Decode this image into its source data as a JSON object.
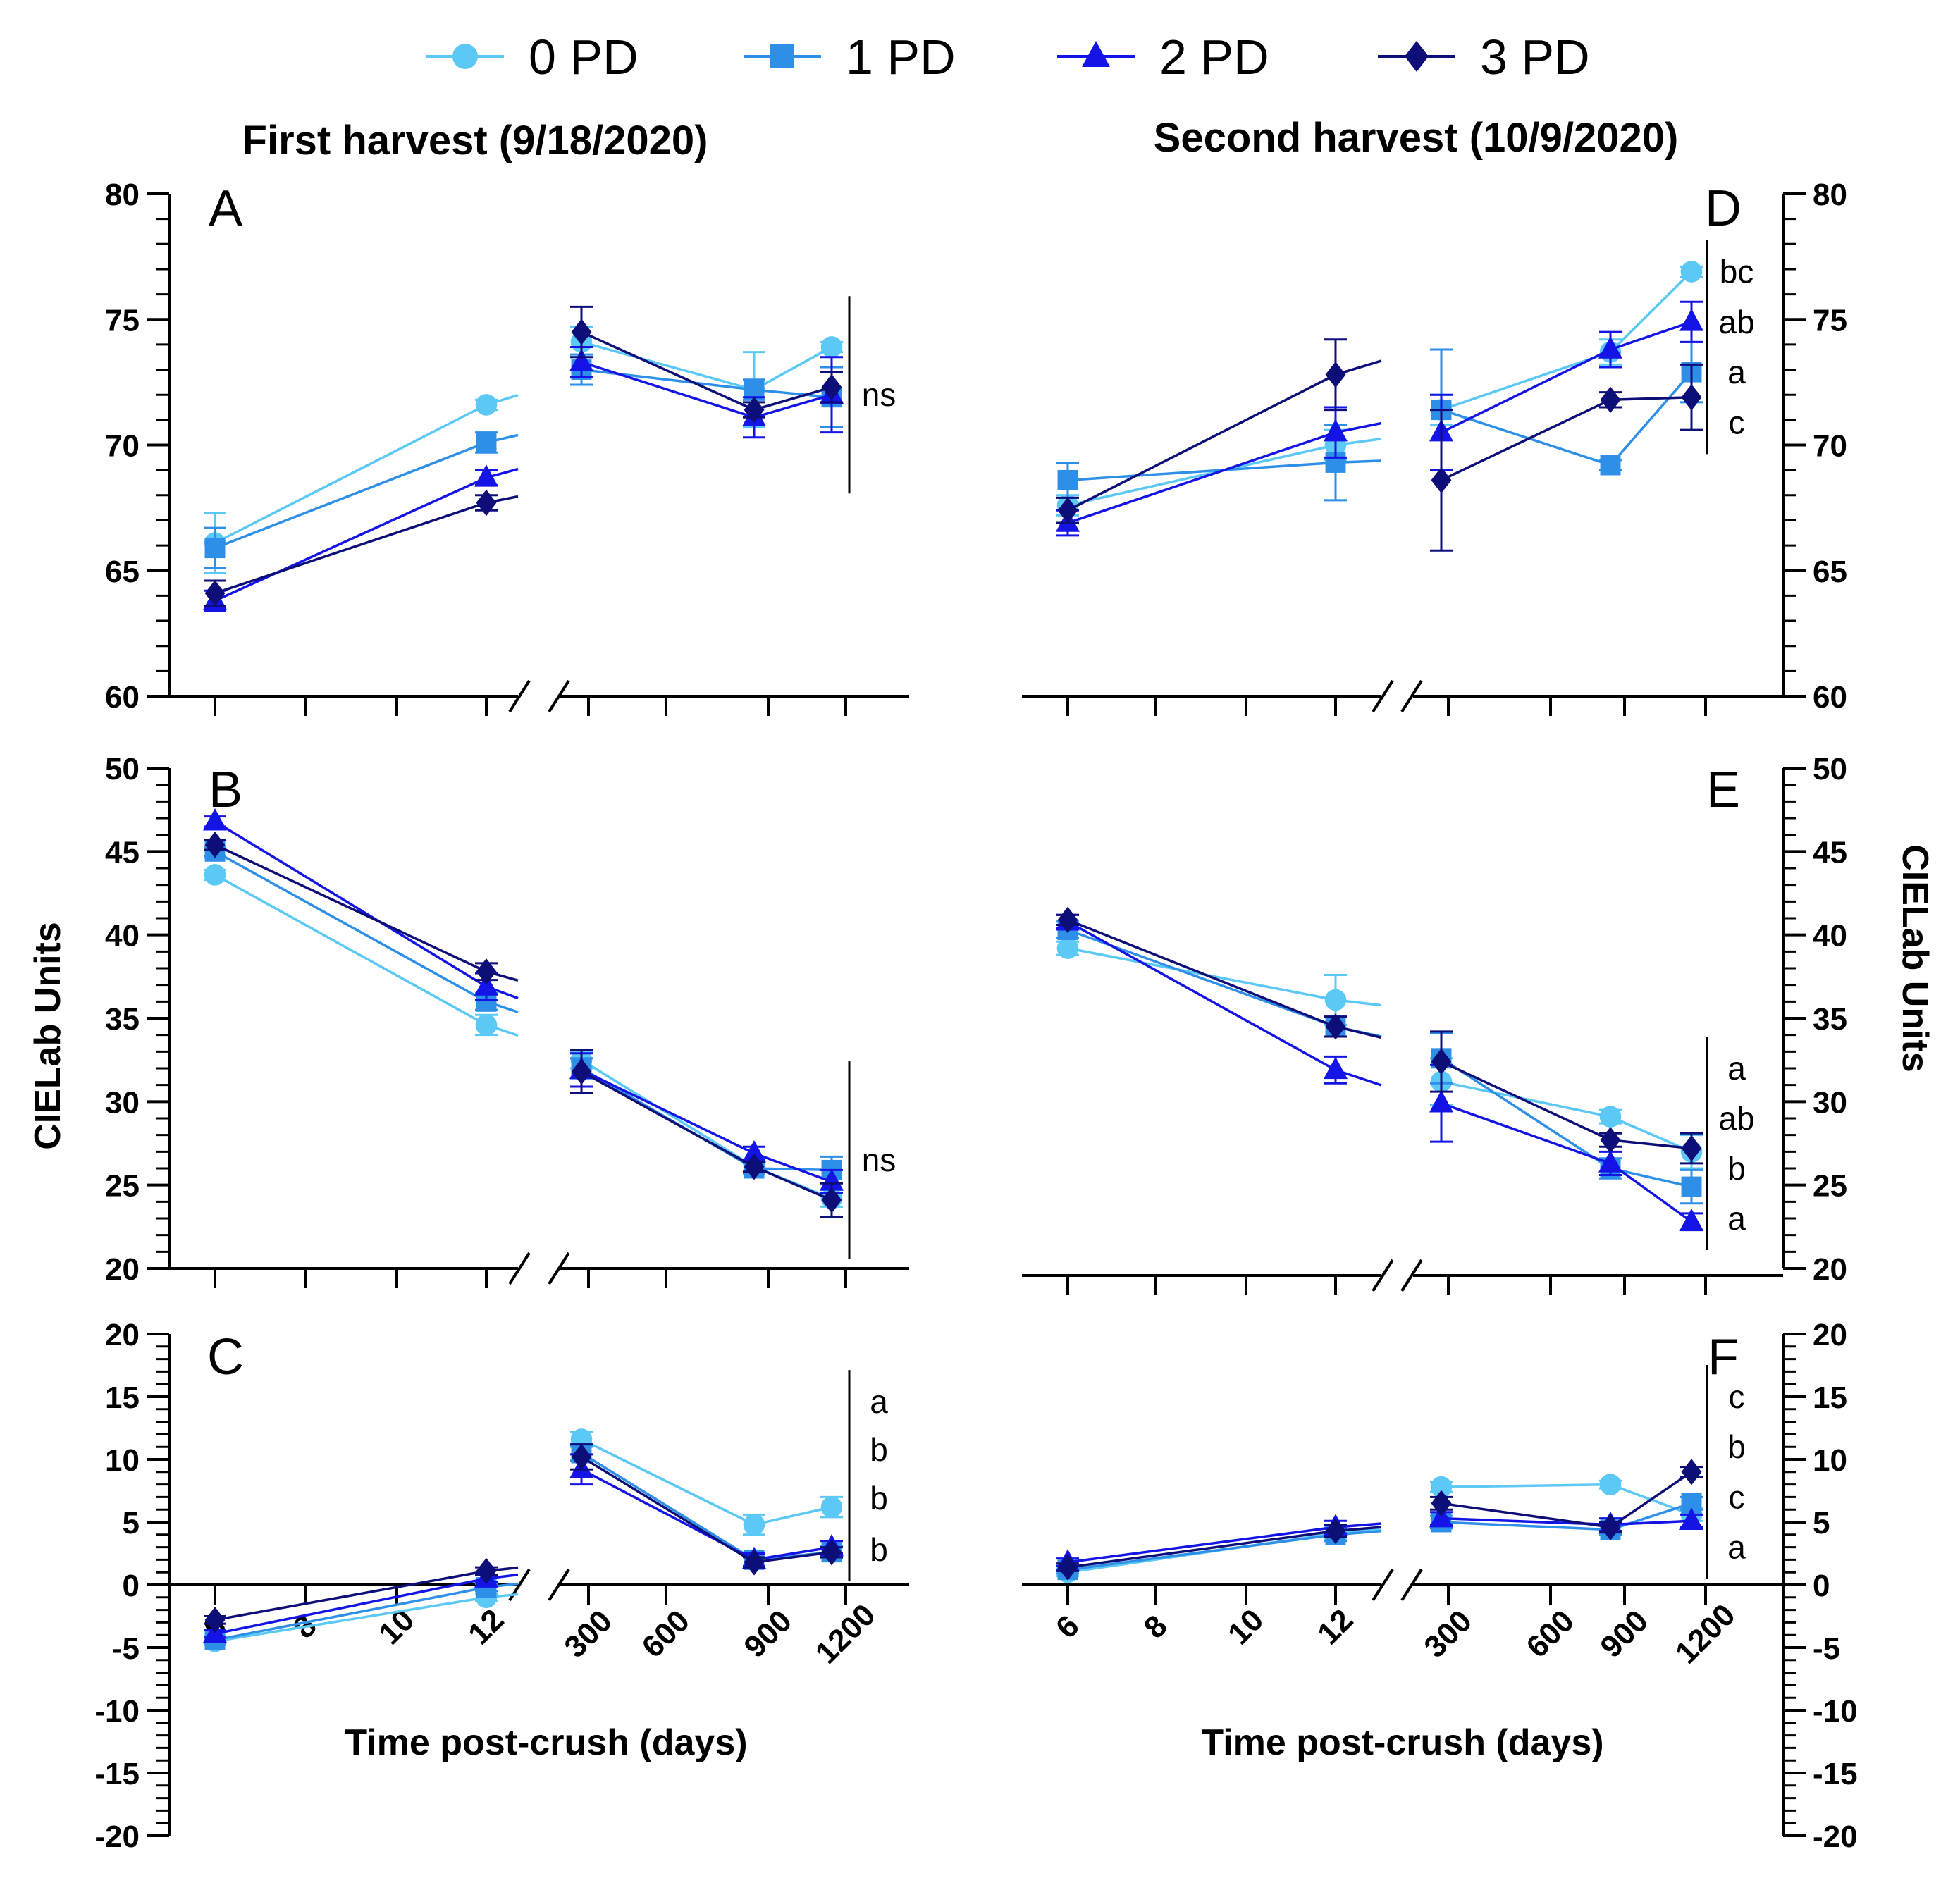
{
  "legend": [
    {
      "name": "0 PD",
      "color": "#5BC8F5",
      "marker": "circle"
    },
    {
      "name": "1 PD",
      "color": "#2E8FE8",
      "marker": "square"
    },
    {
      "name": "2 PD",
      "color": "#1414E6",
      "marker": "triangle"
    },
    {
      "name": "3 PD",
      "color": "#0E0E78",
      "marker": "diamond"
    }
  ],
  "titles": {
    "first": "First harvest  (9/18/2020)",
    "second": "Second harvest (10/9/2020)"
  },
  "axis_titles": {
    "y_left": "CIELab Units",
    "y_right": "CIELab Units",
    "x_left": "Time post-crush (days)",
    "x_right": "Time post-crush (days)"
  },
  "x_ticks": {
    "early": [
      6,
      8,
      10,
      12
    ],
    "late": [
      300,
      600,
      900,
      1200
    ]
  },
  "chart_data": [
    {
      "type": "line",
      "panel": "A",
      "harvest": "First harvest (9/18/2020)",
      "ylim": [
        60,
        80
      ],
      "y_ticks": [
        60,
        65,
        70,
        75,
        80
      ],
      "x": [
        6,
        12,
        150,
        800,
        1100
      ],
      "series": [
        {
          "name": "0 PD",
          "values": [
            66.1,
            71.6,
            74.1,
            72.2,
            73.9
          ],
          "err": [
            1.2,
            0.2,
            0.6,
            1.5,
            0.2
          ]
        },
        {
          "name": "1 PD",
          "values": [
            65.9,
            70.1,
            73.0,
            72.2,
            71.9
          ],
          "err": [
            0.8,
            0.4,
            0.6,
            0.4,
            1.2
          ]
        },
        {
          "name": "2 PD",
          "values": [
            63.8,
            68.7,
            73.3,
            71.1,
            72.0
          ],
          "err": [
            0.4,
            0.3,
            0.6,
            0.8,
            1.5
          ]
        },
        {
          "name": "3 PD",
          "values": [
            64.1,
            67.7,
            74.5,
            71.4,
            72.3
          ],
          "err": [
            0.5,
            0.3,
            1.0,
            0.3,
            0.6
          ]
        }
      ],
      "sig_labels": [
        "ns"
      ],
      "sig_y": [
        72.0
      ]
    },
    {
      "type": "line",
      "panel": "B",
      "harvest": "First harvest (9/18/2020)",
      "ylim": [
        20,
        50
      ],
      "y_ticks": [
        20,
        25,
        30,
        35,
        40,
        45,
        50
      ],
      "x": [
        6,
        12,
        150,
        800,
        1100
      ],
      "series": [
        {
          "name": "0 PD",
          "values": [
            43.6,
            34.6,
            32.5,
            26.1,
            24.2
          ],
          "err": [
            0.3,
            0.6,
            0.5,
            0.3,
            0.5
          ]
        },
        {
          "name": "1 PD",
          "values": [
            45.0,
            36.0,
            32.0,
            26.0,
            25.9
          ],
          "err": [
            0.3,
            0.5,
            0.6,
            0.3,
            0.8
          ]
        },
        {
          "name": "2 PD",
          "values": [
            46.8,
            36.9,
            31.9,
            26.9,
            25.2
          ],
          "err": [
            0.3,
            0.8,
            1.0,
            0.4,
            0.7
          ]
        },
        {
          "name": "3 PD",
          "values": [
            45.4,
            37.8,
            31.8,
            26.1,
            24.1
          ],
          "err": [
            0.3,
            0.5,
            1.3,
            0.3,
            1.0
          ]
        }
      ],
      "sig_labels": [
        "ns"
      ],
      "sig_y": [
        26.5
      ]
    },
    {
      "type": "line",
      "panel": "C",
      "harvest": "First harvest (9/18/2020)",
      "ylim": [
        -20,
        20
      ],
      "y_ticks": [
        -20,
        -15,
        -10,
        -5,
        0,
        5,
        10,
        15,
        20
      ],
      "x": [
        6,
        12,
        150,
        800,
        1100
      ],
      "series": [
        {
          "name": "0 PD",
          "values": [
            -4.5,
            -1.0,
            11.6,
            4.8,
            6.2
          ],
          "err": [
            0.3,
            0.3,
            0.6,
            0.8,
            0.8
          ]
        },
        {
          "name": "1 PD",
          "values": [
            -4.4,
            -0.2,
            10.5,
            2.0,
            2.6
          ],
          "err": [
            0.3,
            0.3,
            0.6,
            0.5,
            0.5
          ]
        },
        {
          "name": "2 PD",
          "values": [
            -3.9,
            0.5,
            9.2,
            2.0,
            3.0
          ],
          "err": [
            0.3,
            0.3,
            1.2,
            0.5,
            0.5
          ]
        },
        {
          "name": "3 PD",
          "values": [
            -2.8,
            1.1,
            10.2,
            1.8,
            2.6
          ],
          "err": [
            0.3,
            0.3,
            1.0,
            0.4,
            0.4
          ]
        }
      ],
      "sig_labels": [
        "a",
        "b",
        "b",
        "b"
      ],
      "sig_y": [
        14.6,
        10.8,
        6.9,
        2.8
      ]
    },
    {
      "type": "line",
      "panel": "D",
      "harvest": "Second harvest (10/9/2020)",
      "ylim": [
        60,
        80
      ],
      "y_ticks": [
        60,
        65,
        70,
        75,
        80
      ],
      "x": [
        6,
        12,
        150,
        800,
        1100
      ],
      "series": [
        {
          "name": "0 PD",
          "values": [
            67.6,
            70.0,
            71.4,
            73.7,
            76.9
          ],
          "err": [
            0.4,
            0.6,
            0.6,
            0.5,
            0.2
          ]
        },
        {
          "name": "1 PD",
          "values": [
            68.6,
            69.3,
            71.4,
            69.2,
            72.9
          ],
          "err": [
            0.7,
            1.5,
            2.4,
            0.2,
            1.2
          ]
        },
        {
          "name": "2 PD",
          "values": [
            66.9,
            70.5,
            70.5,
            73.8,
            74.9
          ],
          "err": [
            0.5,
            1.0,
            1.5,
            0.7,
            0.8
          ]
        },
        {
          "name": "3 PD",
          "values": [
            67.4,
            72.8,
            68.6,
            71.8,
            71.9
          ],
          "err": [
            0.5,
            1.4,
            2.8,
            0.3,
            1.3
          ]
        }
      ],
      "sig_labels": [
        "bc",
        "ab",
        "a",
        "c"
      ],
      "sig_y": [
        76.9,
        74.9,
        72.9,
        70.9
      ]
    },
    {
      "type": "line",
      "panel": "E",
      "harvest": "Second harvest (10/9/2020)",
      "ylim": [
        20,
        50
      ],
      "y_ticks": [
        20,
        25,
        30,
        35,
        40,
        45,
        50
      ],
      "x": [
        6,
        12,
        150,
        800,
        1100
      ],
      "series": [
        {
          "name": "0 PD",
          "values": [
            39.2,
            36.1,
            31.2,
            29.1,
            27.0
          ],
          "err": [
            0.4,
            1.5,
            1.4,
            0.4,
            1.0
          ]
        },
        {
          "name": "1 PD",
          "values": [
            40.3,
            34.5,
            32.6,
            26.0,
            24.9
          ],
          "err": [
            0.5,
            0.6,
            1.5,
            0.6,
            1.0
          ]
        },
        {
          "name": "2 PD",
          "values": [
            40.8,
            31.9,
            29.9,
            26.3,
            22.8
          ],
          "err": [
            0.4,
            0.8,
            2.3,
            0.7,
            0.5
          ]
        },
        {
          "name": "3 PD",
          "values": [
            40.9,
            34.5,
            32.4,
            27.7,
            27.2
          ],
          "err": [
            0.3,
            0.6,
            1.8,
            0.4,
            0.9
          ]
        }
      ],
      "sig_labels": [
        "a",
        "ab",
        "b",
        "a"
      ],
      "sig_y": [
        32.0,
        29.0,
        26.0,
        23.0
      ]
    },
    {
      "type": "line",
      "panel": "F",
      "harvest": "Second harvest (10/9/2020)",
      "ylim": [
        -20,
        20
      ],
      "y_ticks": [
        -20,
        -15,
        -10,
        -5,
        0,
        5,
        10,
        15,
        20
      ],
      "x": [
        6,
        12,
        150,
        800,
        1100
      ],
      "series": [
        {
          "name": "0 PD",
          "values": [
            1.0,
            4.1,
            7.8,
            8.0,
            5.6
          ],
          "err": [
            0.3,
            0.5,
            0.4,
            0.3,
            0.5
          ]
        },
        {
          "name": "1 PD",
          "values": [
            1.2,
            4.0,
            5.0,
            4.4,
            6.5
          ],
          "err": [
            0.3,
            0.5,
            0.5,
            0.4,
            0.5
          ]
        },
        {
          "name": "2 PD",
          "values": [
            1.8,
            4.6,
            5.3,
            4.8,
            5.1
          ],
          "err": [
            0.3,
            0.5,
            0.5,
            0.5,
            0.5
          ]
        },
        {
          "name": "3 PD",
          "values": [
            1.4,
            4.3,
            6.5,
            4.6,
            9.0
          ],
          "err": [
            0.3,
            0.5,
            0.5,
            0.4,
            0.4
          ]
        }
      ],
      "sig_labels": [
        "c",
        "b",
        "c",
        "a"
      ],
      "sig_y": [
        15.0,
        11.0,
        7.0,
        3.0
      ]
    }
  ]
}
